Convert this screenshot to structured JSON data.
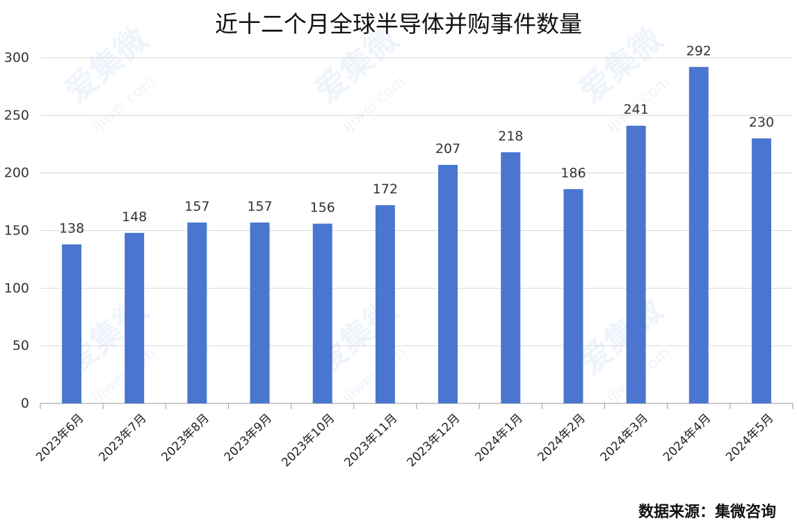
{
  "chart_data": {
    "type": "bar",
    "title": "近十二个月全球半导体并购事件数量",
    "categories": [
      "2023年6月",
      "2023年7月",
      "2023年8月",
      "2023年9月",
      "2023年10月",
      "2023年11月",
      "2023年12月",
      "2024年1月",
      "2024年2月",
      "2024年3月",
      "2024年4月",
      "2024年5月"
    ],
    "values": [
      138,
      148,
      157,
      157,
      156,
      172,
      207,
      218,
      186,
      241,
      292,
      230
    ],
    "ylim": [
      0,
      300
    ],
    "yticks": [
      0,
      50,
      100,
      150,
      200,
      250,
      300
    ],
    "grid": true,
    "bar_color": "#4a76cf",
    "data_labels": true
  },
  "source": "数据来源：集微咨询",
  "watermark": {
    "text": "爱集微",
    "url": "ijiwei.com"
  }
}
